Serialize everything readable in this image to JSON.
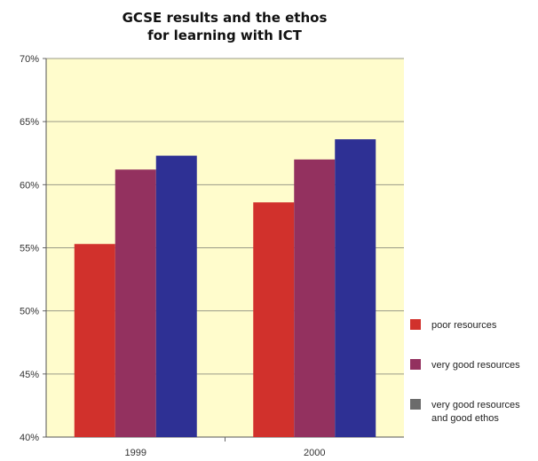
{
  "chart_data": {
    "type": "bar",
    "title_lines": [
      "GCSE results and the ethos",
      "for learning with ICT"
    ],
    "categories": [
      "1999",
      "2000"
    ],
    "series": [
      {
        "name": "poor resources",
        "color": "#d1312c",
        "values": [
          55.3,
          58.6
        ]
      },
      {
        "name": "very good resources",
        "color": "#93315f",
        "values": [
          61.2,
          62.0
        ]
      },
      {
        "name": "very good resources and good ethos",
        "color": "#2e3094",
        "legend_color": "#6b6b6b",
        "values": [
          62.3,
          63.6
        ]
      }
    ],
    "ylim": [
      40,
      70
    ],
    "yticks": [
      40,
      45,
      50,
      55,
      60,
      65,
      70
    ],
    "ytick_labels": [
      "40%",
      "45%",
      "50%",
      "55%",
      "60%",
      "65%",
      "70%"
    ],
    "legend_labels": [
      [
        "poor resources"
      ],
      [
        "very good resources"
      ],
      [
        "very good resources",
        "and good ethos"
      ]
    ],
    "grid": true,
    "legend_position": "right",
    "plot_background": "#fffccc"
  }
}
